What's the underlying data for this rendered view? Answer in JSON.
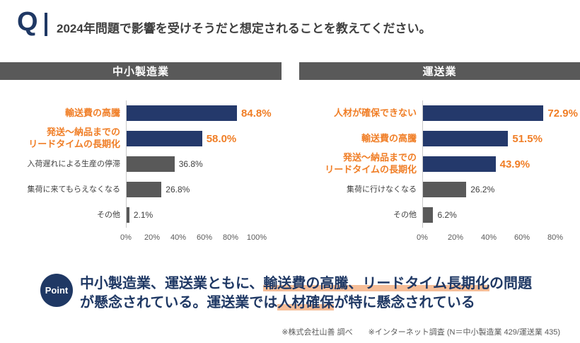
{
  "header": {
    "q": "Q",
    "title": "2024年問題で影響を受けそうだと想定されることを教えてください。"
  },
  "colors": {
    "navy": "#1F3864",
    "bar_navy": "#24396B",
    "orange": "#F07E26",
    "highlight_peach": "#F6BE98",
    "bar_gray": "#595959",
    "title_bar_gray": "#595959",
    "text_gray": "#404040"
  },
  "chart_data": [
    {
      "type": "bar",
      "orientation": "horizontal",
      "title": "中小製造業",
      "categories": [
        "輸送費の高騰",
        "発送〜納品までの\nリードタイムの長期化",
        "入荷遅れによる生産の停滞",
        "集荷に来てもらえなくなる",
        "その他"
      ],
      "values": [
        84.8,
        58.0,
        36.8,
        26.8,
        2.1
      ],
      "highlighted": [
        true,
        true,
        false,
        false,
        false
      ],
      "xlim": [
        0,
        100
      ],
      "ticks": [
        "0%",
        "20%",
        "40%",
        "60%",
        "80%",
        "100%"
      ],
      "value_suffix": "%",
      "grid": false,
      "legend": "none"
    },
    {
      "type": "bar",
      "orientation": "horizontal",
      "title": "運送業",
      "categories": [
        "人材が確保できない",
        "輸送費の高騰",
        "発送〜納品までの\nリードタイムの長期化",
        "集荷に行けなくなる",
        "その他"
      ],
      "values": [
        72.9,
        51.5,
        43.9,
        26.2,
        6.2
      ],
      "highlighted": [
        true,
        true,
        true,
        false,
        false
      ],
      "xlim": [
        0,
        80
      ],
      "ticks": [
        "0%",
        "20%",
        "40%",
        "60%",
        "80%"
      ],
      "value_suffix": "%",
      "grid": false,
      "legend": "none"
    }
  ],
  "point": {
    "badge": "Point",
    "segments": [
      {
        "text": "中小製造業、運送業ともに、",
        "highlight": false
      },
      {
        "text": "輸送費の高騰、リードタイム長期化",
        "highlight": true
      },
      {
        "text": "の問題",
        "highlight": false,
        "break_after": true
      },
      {
        "text": "が懸念されている。運送業では",
        "highlight": false
      },
      {
        "text": "人材確保",
        "highlight": true
      },
      {
        "text": "が特に懸念されている",
        "highlight": false
      }
    ]
  },
  "footer": "※株式会社山善 調べ　　※インターネット調査 (N＝中小製造業 429/運送業 435)"
}
